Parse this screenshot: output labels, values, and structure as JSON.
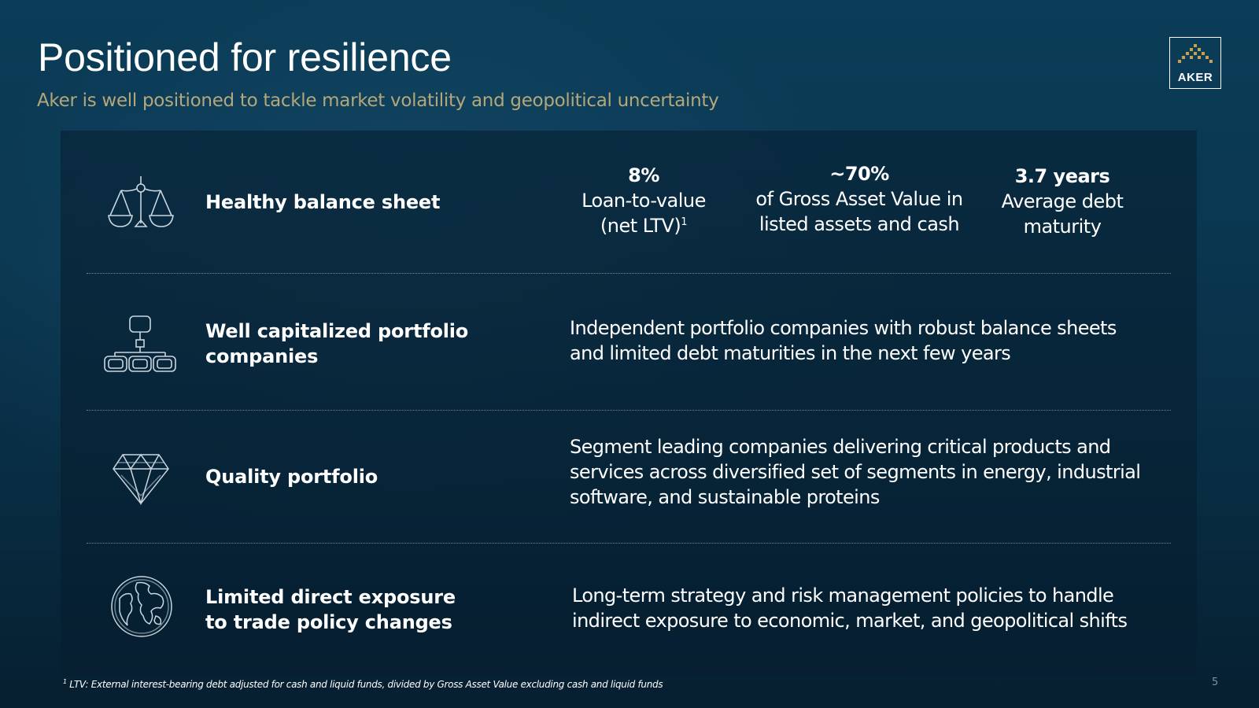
{
  "header": {
    "title": "Positioned for resilience",
    "subtitle": "Aker is well positioned to tackle market volatility and geopolitical uncertainty",
    "logo_text": "AKER"
  },
  "rows": [
    {
      "icon": "balance-scale-icon",
      "label": "Healthy balance sheet",
      "stats": [
        {
          "value": "8%",
          "line1": "Loan-to-value",
          "line2": "(net LTV)",
          "sup": "1"
        },
        {
          "value": "~70%",
          "line1": "of Gross Asset Value in",
          "line2": "listed assets and cash"
        },
        {
          "value": "3.7 years",
          "line1": "Average debt",
          "line2": "maturity"
        }
      ]
    },
    {
      "icon": "org-chart-icon",
      "label_line1": "Well capitalized portfolio",
      "label_line2": "companies",
      "text_line1": "Independent portfolio companies with robust balance sheets",
      "text_line2": "and limited debt maturities in the next few years"
    },
    {
      "icon": "diamond-icon",
      "label": "Quality portfolio",
      "text_line1": "Segment leading companies delivering critical products and",
      "text_line2": "services across diversified set of segments in energy, industrial",
      "text_line3": "software, and sustainable proteins"
    },
    {
      "icon": "globe-icon",
      "label_line1": "Limited direct exposure",
      "label_line2": "to trade policy changes",
      "text_line1": "Long-term strategy and risk management policies to handle",
      "text_line2": "indirect exposure to economic, market, and geopolitical shifts"
    }
  ],
  "footnote": {
    "marker": "1",
    "text": " LTV: External interest-bearing debt adjusted for cash and liquid funds, divided by Gross Asset Value excluding cash and liquid funds"
  },
  "page_number": "5",
  "colors": {
    "background": "#0a3650",
    "subtitle_gold": "#b5a77a",
    "logo_gold": "#c8a24a",
    "text": "#ffffff"
  }
}
